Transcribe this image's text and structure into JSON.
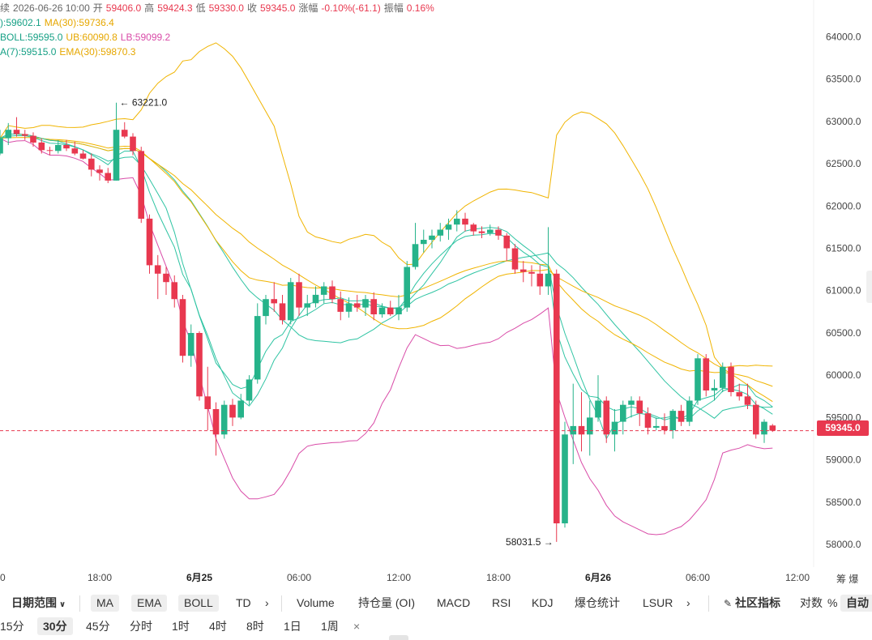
{
  "info": {
    "line1": {
      "prefix": "续",
      "date": "2026-06-26 10:00",
      "open_label": "开",
      "open": "59406.0",
      "high_label": "高",
      "high": "59424.3",
      "low_label": "低",
      "low": "59330.0",
      "close_label": "收",
      "close": "59345.0",
      "change_label": "涨幅",
      "change": "-0.10%(-61.1)",
      "amp_label": "振幅",
      "amp": "0.16%"
    },
    "line2": {
      "ma7": "):59602.1",
      "ma30": "MA(30):59736.4"
    },
    "line3": {
      "boll": "BOLL:59595.0",
      "ub": "UB:60090.8",
      "lb": "LB:59099.2"
    },
    "line4": {
      "ema7": "A(7):59515.0",
      "ema30": "EMA(30):59870.3"
    }
  },
  "current_price": "59345.0",
  "toolbar": {
    "date_range": "日期范围",
    "ma": "MA",
    "ema": "EMA",
    "boll": "BOLL",
    "td": "TD",
    "more1": "›",
    "volume": "Volume",
    "oi": "持仓量 (OI)",
    "macd": "MACD",
    "rsi": "RSI",
    "kdj": "KDJ",
    "liq": "爆仓统计",
    "lsur": "LSUR",
    "more2": "›",
    "community": "社区指标",
    "log": "对数",
    "pct": "%",
    "auto": "自动"
  },
  "intervals": [
    "15分",
    "30分",
    "45分",
    "分时",
    "1时",
    "4时",
    "8时",
    "1日",
    "1周",
    "×"
  ],
  "active_interval": "30分",
  "colors": {
    "up": "#26b38a",
    "down": "#e8384f",
    "ma7": "#2fc4a3",
    "ma30": "#f0b400",
    "boll_ub": "#f0b400",
    "boll_lb": "#d94ca8"
  },
  "chart_data": {
    "type": "candlestick",
    "y_ticks": [
      "64000.0",
      "63500.0",
      "63000.0",
      "62500.0",
      "62000.0",
      "61500.0",
      "61000.0",
      "60500.0",
      "60000.0",
      "59500.0",
      "59000.0",
      "58500.0",
      "58000.0"
    ],
    "ylim": [
      57800,
      64300
    ],
    "x_ticks": [
      {
        "label": "0",
        "i": 0,
        "bold": false
      },
      {
        "label": "18:00",
        "i": 12,
        "bold": false
      },
      {
        "label": "6月25",
        "i": 24,
        "bold": true
      },
      {
        "label": "06:00",
        "i": 36,
        "bold": false
      },
      {
        "label": "12:00",
        "i": 48,
        "bold": false
      },
      {
        "label": "18:00",
        "i": 60,
        "bold": false
      },
      {
        "label": "6月26",
        "i": 72,
        "bold": true
      },
      {
        "label": "06:00",
        "i": 84,
        "bold": false
      },
      {
        "label": "12:00",
        "i": 96,
        "bold": false
      }
    ],
    "x_extra_label": "筹 爆",
    "annotations": [
      {
        "text": "← 63221.0",
        "i": 14,
        "value": 63221
      },
      {
        "text": "58031.5 →",
        "i": 67,
        "value": 58031.5
      }
    ],
    "candles": [
      [
        62620,
        62900,
        62600,
        62800
      ],
      [
        62800,
        62980,
        62720,
        62900
      ],
      [
        62900,
        63050,
        62820,
        62850
      ],
      [
        62850,
        62900,
        62780,
        62830
      ],
      [
        62830,
        62870,
        62700,
        62750
      ],
      [
        62750,
        62800,
        62620,
        62660
      ],
      [
        62660,
        62700,
        62600,
        62650
      ],
      [
        62650,
        62780,
        62620,
        62720
      ],
      [
        62720,
        62780,
        62650,
        62680
      ],
      [
        62680,
        62760,
        62600,
        62620
      ],
      [
        62620,
        62660,
        62550,
        62560
      ],
      [
        62560,
        62620,
        62350,
        62430
      ],
      [
        62430,
        62480,
        62300,
        62390
      ],
      [
        62390,
        62450,
        62270,
        62300
      ],
      [
        62300,
        63221,
        62300,
        62900
      ],
      [
        62900,
        62990,
        62800,
        62820
      ],
      [
        62820,
        62860,
        62600,
        62650
      ],
      [
        62650,
        62700,
        61800,
        61850
      ],
      [
        61850,
        61900,
        61200,
        61300
      ],
      [
        61300,
        61420,
        60900,
        61200
      ],
      [
        61200,
        61280,
        60950,
        61100
      ],
      [
        61100,
        61180,
        60800,
        60900
      ],
      [
        60900,
        60950,
        60150,
        60230
      ],
      [
        60230,
        60600,
        60100,
        60500
      ],
      [
        60500,
        60520,
        59700,
        59750
      ],
      [
        59750,
        60100,
        59350,
        59600
      ],
      [
        59600,
        59680,
        59050,
        59300
      ],
      [
        59300,
        59700,
        59250,
        59650
      ],
      [
        59650,
        59720,
        59400,
        59500
      ],
      [
        59500,
        59780,
        59480,
        59700
      ],
      [
        59700,
        60000,
        59650,
        59950
      ],
      [
        59950,
        60850,
        59900,
        60700
      ],
      [
        60700,
        60950,
        60600,
        60900
      ],
      [
        60900,
        61100,
        60750,
        60850
      ],
      [
        60850,
        60950,
        60600,
        60650
      ],
      [
        60650,
        61150,
        60600,
        61100
      ],
      [
        61100,
        61200,
        60700,
        60800
      ],
      [
        60800,
        60950,
        60700,
        60850
      ],
      [
        60850,
        61050,
        60800,
        60950
      ],
      [
        60950,
        61100,
        60850,
        61050
      ],
      [
        61050,
        61120,
        60850,
        60900
      ],
      [
        60900,
        60990,
        60650,
        60750
      ],
      [
        60750,
        60920,
        60680,
        60850
      ],
      [
        60850,
        60950,
        60750,
        60800
      ],
      [
        60800,
        60950,
        60700,
        60900
      ],
      [
        60900,
        60980,
        60650,
        60720
      ],
      [
        60720,
        60850,
        60680,
        60800
      ],
      [
        60800,
        60880,
        60700,
        60720
      ],
      [
        60720,
        60950,
        60650,
        60800
      ],
      [
        60800,
        61350,
        60750,
        61280
      ],
      [
        61280,
        61800,
        61250,
        61550
      ],
      [
        61550,
        61720,
        61450,
        61600
      ],
      [
        61600,
        61720,
        61500,
        61650
      ],
      [
        61650,
        61800,
        61580,
        61720
      ],
      [
        61720,
        61850,
        61600,
        61780
      ],
      [
        61780,
        61950,
        61700,
        61850
      ],
      [
        61850,
        61920,
        61700,
        61780
      ],
      [
        61780,
        61800,
        61650,
        61700
      ],
      [
        61700,
        61760,
        61620,
        61680
      ],
      [
        61680,
        61780,
        61650,
        61720
      ],
      [
        61720,
        61760,
        61600,
        61650
      ],
      [
        61650,
        61680,
        61350,
        61500
      ],
      [
        61500,
        61550,
        61200,
        61250
      ],
      [
        61250,
        61350,
        61100,
        61220
      ],
      [
        61220,
        61300,
        61050,
        61200
      ],
      [
        61200,
        61300,
        60950,
        61050
      ],
      [
        61050,
        61750,
        60950,
        61200
      ],
      [
        61200,
        61250,
        58031.5,
        58250
      ],
      [
        58250,
        59450,
        58200,
        59300
      ],
      [
        59300,
        59900,
        58950,
        59400
      ],
      [
        59400,
        59800,
        59100,
        59300
      ],
      [
        59300,
        59700,
        59050,
        59500
      ],
      [
        59500,
        60000,
        59450,
        59700
      ],
      [
        59700,
        59750,
        59200,
        59300
      ],
      [
        59300,
        59600,
        59100,
        59450
      ],
      [
        59450,
        59700,
        59300,
        59650
      ],
      [
        59650,
        59750,
        59500,
        59700
      ],
      [
        59700,
        59750,
        59400,
        59550
      ],
      [
        59550,
        59620,
        59300,
        59380
      ],
      [
        59380,
        59500,
        59350,
        59400
      ],
      [
        59400,
        59550,
        59300,
        59350
      ],
      [
        59350,
        59600,
        59250,
        59580
      ],
      [
        59580,
        59650,
        59400,
        59450
      ],
      [
        59450,
        59750,
        59400,
        59700
      ],
      [
        59700,
        60250,
        59650,
        60200
      ],
      [
        60200,
        60250,
        59750,
        59820
      ],
      [
        59820,
        59950,
        59700,
        59850
      ],
      [
        59850,
        60150,
        59800,
        60100
      ],
      [
        60100,
        60150,
        59750,
        59800
      ],
      [
        59800,
        59900,
        59700,
        59750
      ],
      [
        59750,
        59900,
        59600,
        59650
      ],
      [
        59650,
        59700,
        59250,
        59300
      ],
      [
        59300,
        59480,
        59200,
        59450
      ],
      [
        59406,
        59424.3,
        59330,
        59345
      ]
    ]
  }
}
